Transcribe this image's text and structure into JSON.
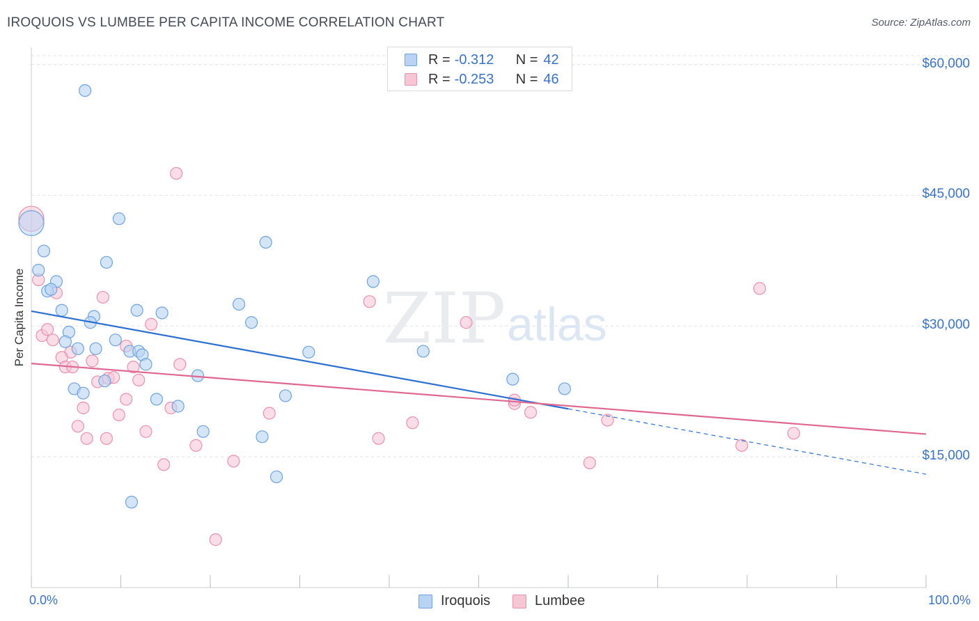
{
  "header": {
    "title": "IROQUOIS VS LUMBEE PER CAPITA INCOME CORRELATION CHART",
    "source": "Source: ZipAtlas.com"
  },
  "legend": {
    "rows": [
      {
        "r_label": "R =",
        "r_value": "-0.312",
        "n_label": "N =",
        "n_value": "42"
      },
      {
        "r_label": "R =",
        "r_value": "-0.253",
        "n_label": "N =",
        "n_value": "46"
      }
    ]
  },
  "colors": {
    "iroquois_fill": "#b8d3f4",
    "iroquois_stroke": "#6fa2de",
    "iroquois_line": "#2c6fd1",
    "lumbee_fill": "#f7c6d5",
    "lumbee_stroke": "#e891ae",
    "lumbee_line": "#e0678f",
    "grid": "#dfe2e6",
    "axis_text": "#3b72c4"
  },
  "watermark": {
    "zip": "ZIP",
    "atlas": "atlas"
  },
  "chart_data": {
    "type": "scatter",
    "title": "IROQUOIS VS LUMBEE PER CAPITA INCOME CORRELATION CHART",
    "xlabel": "",
    "ylabel": "Per Capita Income",
    "xlim": [
      0,
      100
    ],
    "ylim": [
      0,
      61000
    ],
    "x_tick_labels": [
      "0.0%",
      "100.0%"
    ],
    "y_ticks": [
      15000,
      30000,
      45000,
      60000
    ],
    "y_tick_labels": [
      "$15,000",
      "$30,000",
      "$45,000",
      "$60,000"
    ],
    "grid": true,
    "legend_position": "bottom-center",
    "series": [
      {
        "name": "Iroquois",
        "r": -0.312,
        "n": 42,
        "trend": {
          "x0": 0,
          "y0": 31700,
          "x1": 60,
          "y1": 20500,
          "dashed_to_x": 100,
          "dashed_to_y": 13000
        },
        "points": [
          {
            "x": 0.0,
            "y": 41800,
            "big": true
          },
          {
            "x": 6.0,
            "y": 57000
          },
          {
            "x": 1.4,
            "y": 38600
          },
          {
            "x": 0.8,
            "y": 36400
          },
          {
            "x": 2.8,
            "y": 35100
          },
          {
            "x": 1.8,
            "y": 34000
          },
          {
            "x": 2.2,
            "y": 34200
          },
          {
            "x": 3.4,
            "y": 31800
          },
          {
            "x": 4.2,
            "y": 29300
          },
          {
            "x": 3.8,
            "y": 28200
          },
          {
            "x": 5.2,
            "y": 27400
          },
          {
            "x": 7.0,
            "y": 31100
          },
          {
            "x": 6.6,
            "y": 30400
          },
          {
            "x": 7.2,
            "y": 27400
          },
          {
            "x": 9.4,
            "y": 28400
          },
          {
            "x": 9.8,
            "y": 42300
          },
          {
            "x": 8.4,
            "y": 37300
          },
          {
            "x": 11.8,
            "y": 31800
          },
          {
            "x": 14.6,
            "y": 31500
          },
          {
            "x": 11.0,
            "y": 27100
          },
          {
            "x": 12.0,
            "y": 27100
          },
          {
            "x": 12.4,
            "y": 26700
          },
          {
            "x": 12.8,
            "y": 25600
          },
          {
            "x": 4.8,
            "y": 22800
          },
          {
            "x": 5.8,
            "y": 22300
          },
          {
            "x": 8.2,
            "y": 23700
          },
          {
            "x": 14.0,
            "y": 21600
          },
          {
            "x": 16.4,
            "y": 20800
          },
          {
            "x": 18.6,
            "y": 24300
          },
          {
            "x": 23.2,
            "y": 32500
          },
          {
            "x": 24.6,
            "y": 30400
          },
          {
            "x": 26.2,
            "y": 39600
          },
          {
            "x": 27.4,
            "y": 12700
          },
          {
            "x": 28.4,
            "y": 22000
          },
          {
            "x": 25.8,
            "y": 17300
          },
          {
            "x": 19.2,
            "y": 17900
          },
          {
            "x": 11.2,
            "y": 9800
          },
          {
            "x": 38.2,
            "y": 35100
          },
          {
            "x": 31.0,
            "y": 27000
          },
          {
            "x": 43.8,
            "y": 27100
          },
          {
            "x": 53.8,
            "y": 23900
          },
          {
            "x": 59.6,
            "y": 22800
          }
        ]
      },
      {
        "name": "Lumbee",
        "r": -0.253,
        "n": 46,
        "trend": {
          "x0": 0,
          "y0": 25700,
          "x1": 100,
          "y1": 17600
        },
        "points": [
          {
            "x": 0.0,
            "y": 42300,
            "big": true
          },
          {
            "x": 16.2,
            "y": 47500
          },
          {
            "x": 0.8,
            "y": 35300
          },
          {
            "x": 2.8,
            "y": 33800
          },
          {
            "x": 8.0,
            "y": 33300
          },
          {
            "x": 1.2,
            "y": 28900
          },
          {
            "x": 1.8,
            "y": 29600
          },
          {
            "x": 2.4,
            "y": 28400
          },
          {
            "x": 4.4,
            "y": 27000
          },
          {
            "x": 3.4,
            "y": 26400
          },
          {
            "x": 6.8,
            "y": 26000
          },
          {
            "x": 3.8,
            "y": 25300
          },
          {
            "x": 4.6,
            "y": 25300
          },
          {
            "x": 10.6,
            "y": 27700
          },
          {
            "x": 13.4,
            "y": 30200
          },
          {
            "x": 11.4,
            "y": 25300
          },
          {
            "x": 16.6,
            "y": 25600
          },
          {
            "x": 7.4,
            "y": 23600
          },
          {
            "x": 8.6,
            "y": 24000
          },
          {
            "x": 9.2,
            "y": 24100
          },
          {
            "x": 12.0,
            "y": 23800
          },
          {
            "x": 10.6,
            "y": 21600
          },
          {
            "x": 5.8,
            "y": 20600
          },
          {
            "x": 9.8,
            "y": 19800
          },
          {
            "x": 15.6,
            "y": 20600
          },
          {
            "x": 26.6,
            "y": 20000
          },
          {
            "x": 5.2,
            "y": 18500
          },
          {
            "x": 6.2,
            "y": 17100
          },
          {
            "x": 8.4,
            "y": 17100
          },
          {
            "x": 12.8,
            "y": 17900
          },
          {
            "x": 18.4,
            "y": 16300
          },
          {
            "x": 14.8,
            "y": 14100
          },
          {
            "x": 22.6,
            "y": 14500
          },
          {
            "x": 20.6,
            "y": 5500
          },
          {
            "x": 37.8,
            "y": 32800
          },
          {
            "x": 48.6,
            "y": 30400
          },
          {
            "x": 38.8,
            "y": 17100
          },
          {
            "x": 42.6,
            "y": 18900
          },
          {
            "x": 54.0,
            "y": 21100
          },
          {
            "x": 54.0,
            "y": 21500
          },
          {
            "x": 55.8,
            "y": 20100
          },
          {
            "x": 62.4,
            "y": 14300
          },
          {
            "x": 64.4,
            "y": 19200
          },
          {
            "x": 81.4,
            "y": 34300
          },
          {
            "x": 79.4,
            "y": 16300
          },
          {
            "x": 85.2,
            "y": 17700
          }
        ]
      }
    ]
  }
}
